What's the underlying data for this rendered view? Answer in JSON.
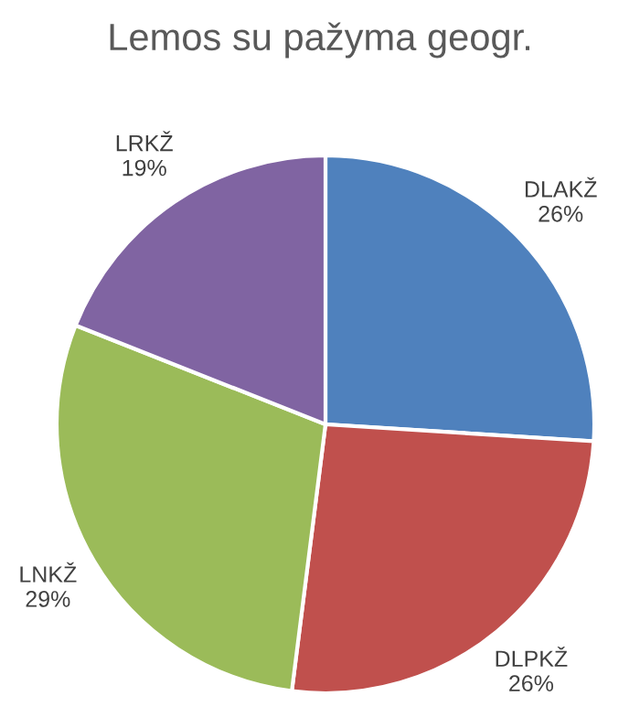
{
  "chart_data": {
    "type": "pie",
    "title": "Lemos su pažyma geogr.",
    "categories": [
      "DLAKŽ",
      "DLPKŽ",
      "LNKŽ",
      "LRKŽ"
    ],
    "values": [
      26,
      26,
      29,
      19
    ],
    "value_labels": [
      "26%",
      "26%",
      "29%",
      "19%"
    ],
    "colors": [
      "#4f81bd",
      "#c0504d",
      "#9bbb59",
      "#8064a2"
    ],
    "legend": false
  }
}
